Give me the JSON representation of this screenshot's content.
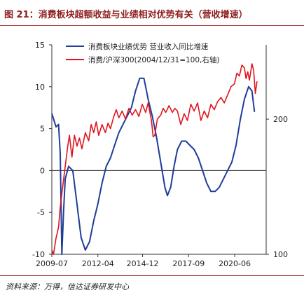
{
  "header": {
    "title": "图 21：消费板块超额收益与业绩相对优势有关（营收增速）"
  },
  "footer": {
    "source": "资料来源：万得，信达证券研发中心"
  },
  "colors": {
    "title": "#8e1e1e",
    "rule": "#9e3a3a",
    "series_blue": "#1f3d99",
    "series_red": "#e0141e"
  },
  "chart_data": {
    "type": "line",
    "x_tick_labels": [
      "2009-07",
      "2012-04",
      "2014-12",
      "2017-09",
      "2020-06"
    ],
    "x_ticks": [
      2009.5,
      2012.25,
      2014.92,
      2017.67,
      2020.42
    ],
    "xlim": [
      2009.5,
      2022.3
    ],
    "y_left": {
      "lim": [
        -10,
        15
      ],
      "ticks": [
        -10,
        -5,
        0,
        5,
        10,
        15
      ]
    },
    "y_right": {
      "lim": [
        100,
        255
      ],
      "ticks": [
        100,
        200
      ],
      "tick_labels": [
        "100",
        "200"
      ]
    },
    "grid": false,
    "legend_position": "top",
    "series": [
      {
        "name": "消费板块业绩优势 营业收入同比增速",
        "axis": "left",
        "color": "#1f3d99",
        "points": [
          [
            2009.5,
            6.8
          ],
          [
            2009.75,
            5.2
          ],
          [
            2009.9,
            5.5
          ],
          [
            2010.0,
            2.0
          ],
          [
            2010.1,
            -10.0
          ],
          [
            2010.2,
            -5.0
          ],
          [
            2010.3,
            -1.0
          ],
          [
            2010.5,
            0.5
          ],
          [
            2010.75,
            0.0
          ],
          [
            2011.0,
            -4.0
          ],
          [
            2011.25,
            -8.0
          ],
          [
            2011.5,
            -9.5
          ],
          [
            2011.75,
            -8.5
          ],
          [
            2012.0,
            -6.0
          ],
          [
            2012.25,
            -4.0
          ],
          [
            2012.5,
            -1.5
          ],
          [
            2012.75,
            0.5
          ],
          [
            2013.0,
            1.5
          ],
          [
            2013.25,
            3.0
          ],
          [
            2013.5,
            4.5
          ],
          [
            2013.75,
            5.5
          ],
          [
            2014.0,
            6.5
          ],
          [
            2014.25,
            7.5
          ],
          [
            2014.5,
            9.5
          ],
          [
            2014.75,
            11.0
          ],
          [
            2015.0,
            11.0
          ],
          [
            2015.25,
            8.5
          ],
          [
            2015.5,
            6.5
          ],
          [
            2015.75,
            4.0
          ],
          [
            2016.0,
            1.0
          ],
          [
            2016.25,
            -2.0
          ],
          [
            2016.4,
            -3.0
          ],
          [
            2016.6,
            -2.0
          ],
          [
            2016.8,
            0.5
          ],
          [
            2017.0,
            2.5
          ],
          [
            2017.25,
            3.5
          ],
          [
            2017.5,
            3.5
          ],
          [
            2017.75,
            3.0
          ],
          [
            2018.0,
            2.5
          ],
          [
            2018.25,
            1.5
          ],
          [
            2018.5,
            0.0
          ],
          [
            2018.75,
            -1.5
          ],
          [
            2019.0,
            -2.5
          ],
          [
            2019.25,
            -2.5
          ],
          [
            2019.5,
            -2.0
          ],
          [
            2019.75,
            -1.0
          ],
          [
            2020.0,
            0.0
          ],
          [
            2020.25,
            1.0
          ],
          [
            2020.5,
            3.0
          ],
          [
            2020.75,
            6.0
          ],
          [
            2021.0,
            8.5
          ],
          [
            2021.25,
            10.0
          ],
          [
            2021.45,
            9.5
          ],
          [
            2021.6,
            7.0
          ]
        ]
      },
      {
        "name": "消费/沪深300(2004/12/31=100,右轴)",
        "axis": "right",
        "color": "#e0141e",
        "points": [
          [
            2009.5,
            103
          ],
          [
            2009.6,
            100
          ],
          [
            2009.75,
            112
          ],
          [
            2009.9,
            120
          ],
          [
            2010.0,
            135
          ],
          [
            2010.15,
            150
          ],
          [
            2010.3,
            165
          ],
          [
            2010.45,
            180
          ],
          [
            2010.55,
            188
          ],
          [
            2010.7,
            172
          ],
          [
            2010.85,
            188
          ],
          [
            2011.0,
            180
          ],
          [
            2011.15,
            186
          ],
          [
            2011.3,
            178
          ],
          [
            2011.5,
            190
          ],
          [
            2011.7,
            184
          ],
          [
            2011.85,
            196
          ],
          [
            2012.0,
            190
          ],
          [
            2012.15,
            198
          ],
          [
            2012.3,
            188
          ],
          [
            2012.5,
            196
          ],
          [
            2012.7,
            190
          ],
          [
            2012.85,
            197
          ],
          [
            2013.0,
            193
          ],
          [
            2013.2,
            202
          ],
          [
            2013.35,
            207
          ],
          [
            2013.5,
            201
          ],
          [
            2013.7,
            206
          ],
          [
            2013.9,
            200
          ],
          [
            2014.1,
            208
          ],
          [
            2014.3,
            203
          ],
          [
            2014.5,
            207
          ],
          [
            2014.7,
            202
          ],
          [
            2014.9,
            211
          ],
          [
            2015.1,
            205
          ],
          [
            2015.25,
            212
          ],
          [
            2015.45,
            199
          ],
          [
            2015.55,
            187
          ],
          [
            2015.65,
            188
          ],
          [
            2015.8,
            200
          ],
          [
            2016.0,
            203
          ],
          [
            2016.15,
            208
          ],
          [
            2016.3,
            205
          ],
          [
            2016.5,
            210
          ],
          [
            2016.7,
            205
          ],
          [
            2016.85,
            208
          ],
          [
            2017.0,
            206
          ],
          [
            2017.2,
            196
          ],
          [
            2017.4,
            204
          ],
          [
            2017.6,
            199
          ],
          [
            2017.8,
            211
          ],
          [
            2018.0,
            206
          ],
          [
            2018.2,
            212
          ],
          [
            2018.4,
            199
          ],
          [
            2018.6,
            206
          ],
          [
            2018.8,
            201
          ],
          [
            2019.0,
            211
          ],
          [
            2019.2,
            207
          ],
          [
            2019.4,
            213
          ],
          [
            2019.6,
            216
          ],
          [
            2019.8,
            212
          ],
          [
            2020.0,
            218
          ],
          [
            2020.2,
            224
          ],
          [
            2020.4,
            226
          ],
          [
            2020.55,
            234
          ],
          [
            2020.7,
            232
          ],
          [
            2020.85,
            240
          ],
          [
            2021.0,
            238
          ],
          [
            2021.1,
            230
          ],
          [
            2021.2,
            235
          ],
          [
            2021.3,
            229
          ],
          [
            2021.45,
            241
          ],
          [
            2021.55,
            236
          ],
          [
            2021.65,
            219
          ],
          [
            2021.75,
            228
          ]
        ]
      }
    ]
  }
}
